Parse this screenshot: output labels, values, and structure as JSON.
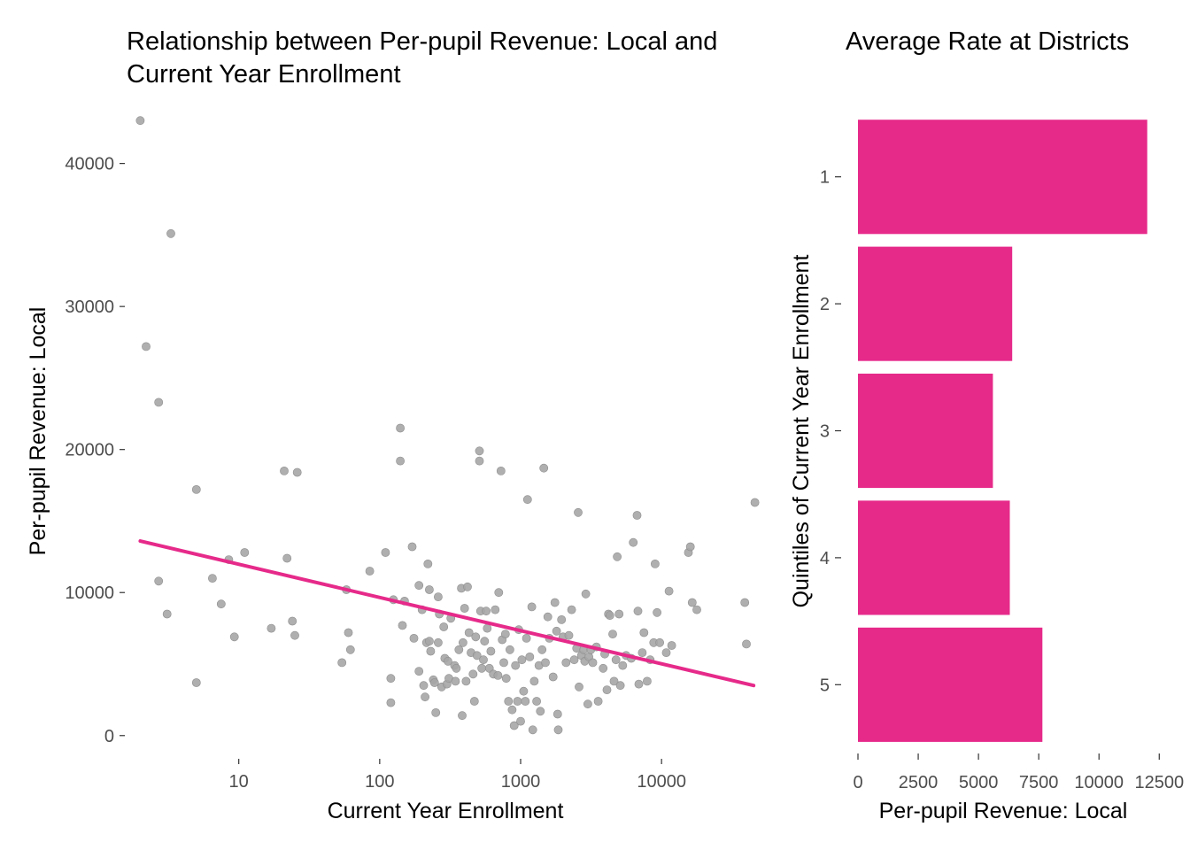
{
  "colors": {
    "accent": "#e62a8a",
    "points": "#a6a6a6",
    "tick_label": "#4d4d4d",
    "background": "#ffffff"
  },
  "chart_data": [
    {
      "type": "scatter",
      "title": "Relationship between Per-pupil Revenue: Local and Current Year Enrollment",
      "title_lines": [
        "Relationship between Per-pupil Revenue: Local and",
        "Current Year Enrollment"
      ],
      "xlabel": "Current Year Enrollment",
      "ylabel": "Per-pupil Revenue: Local",
      "xscale": "log10",
      "xlim": [
        1.6,
        55000
      ],
      "ylim": [
        -1500,
        44000
      ],
      "xticks": [
        10,
        100,
        1000,
        10000
      ],
      "xtick_labels": [
        "10",
        "100",
        "1000",
        "10000"
      ],
      "yticks": [
        0,
        10000,
        20000,
        30000,
        40000
      ],
      "ytick_labels": [
        "0",
        "10000",
        "20000",
        "30000",
        "40000"
      ],
      "grid": false,
      "trend_line": {
        "x": [
          2,
          45000
        ],
        "y": [
          13600,
          3500
        ]
      },
      "points": [
        [
          2,
          43000
        ],
        [
          2.2,
          27200
        ],
        [
          2.7,
          23300
        ],
        [
          2.7,
          10800
        ],
        [
          3.1,
          8500
        ],
        [
          3.3,
          35100
        ],
        [
          5,
          17200
        ],
        [
          5,
          3700
        ],
        [
          6.5,
          11000
        ],
        [
          7.5,
          9200
        ],
        [
          8.5,
          12300
        ],
        [
          9.3,
          6900
        ],
        [
          11,
          12800
        ],
        [
          17,
          7500
        ],
        [
          21,
          18500
        ],
        [
          22,
          12400
        ],
        [
          24,
          8000
        ],
        [
          25,
          7000
        ],
        [
          26,
          18400
        ],
        [
          54,
          5100
        ],
        [
          58,
          10200
        ],
        [
          60,
          7200
        ],
        [
          62,
          6000
        ],
        [
          85,
          11500
        ],
        [
          110,
          12800
        ],
        [
          120,
          4000
        ],
        [
          120,
          2300
        ],
        [
          125,
          9500
        ],
        [
          140,
          21500
        ],
        [
          140,
          19200
        ],
        [
          145,
          7700
        ],
        [
          150,
          9400
        ],
        [
          170,
          13200
        ],
        [
          175,
          6800
        ],
        [
          190,
          10500
        ],
        [
          190,
          4500
        ],
        [
          200,
          8800
        ],
        [
          205,
          3500
        ],
        [
          210,
          2700
        ],
        [
          215,
          6500
        ],
        [
          220,
          12000
        ],
        [
          225,
          10200
        ],
        [
          225,
          6600
        ],
        [
          230,
          5900
        ],
        [
          240,
          3900
        ],
        [
          245,
          3700
        ],
        [
          250,
          1600
        ],
        [
          260,
          6500
        ],
        [
          260,
          9700
        ],
        [
          265,
          8500
        ],
        [
          275,
          3400
        ],
        [
          285,
          7600
        ],
        [
          290,
          5400
        ],
        [
          300,
          3600
        ],
        [
          305,
          5200
        ],
        [
          310,
          4000
        ],
        [
          320,
          8200
        ],
        [
          340,
          4900
        ],
        [
          345,
          3800
        ],
        [
          350,
          4700
        ],
        [
          365,
          6000
        ],
        [
          380,
          10300
        ],
        [
          385,
          1400
        ],
        [
          390,
          6500
        ],
        [
          400,
          8900
        ],
        [
          410,
          3800
        ],
        [
          420,
          10400
        ],
        [
          430,
          7200
        ],
        [
          445,
          5800
        ],
        [
          460,
          4300
        ],
        [
          470,
          2400
        ],
        [
          480,
          6900
        ],
        [
          490,
          5600
        ],
        [
          510,
          19900
        ],
        [
          510,
          19200
        ],
        [
          520,
          8700
        ],
        [
          530,
          4700
        ],
        [
          545,
          5300
        ],
        [
          555,
          6600
        ],
        [
          570,
          8700
        ],
        [
          580,
          7500
        ],
        [
          600,
          4700
        ],
        [
          615,
          5900
        ],
        [
          640,
          4300
        ],
        [
          660,
          8800
        ],
        [
          690,
          4200
        ],
        [
          700,
          10000
        ],
        [
          725,
          18500
        ],
        [
          740,
          6700
        ],
        [
          760,
          5100
        ],
        [
          780,
          7100
        ],
        [
          790,
          4000
        ],
        [
          820,
          2400
        ],
        [
          840,
          6000
        ],
        [
          870,
          1800
        ],
        [
          900,
          700
        ],
        [
          920,
          4900
        ],
        [
          950,
          2400
        ],
        [
          970,
          7400
        ],
        [
          1000,
          1000
        ],
        [
          1020,
          5300
        ],
        [
          1050,
          3100
        ],
        [
          1080,
          2400
        ],
        [
          1100,
          6800
        ],
        [
          1120,
          16500
        ],
        [
          1160,
          5500
        ],
        [
          1200,
          9000
        ],
        [
          1220,
          400
        ],
        [
          1250,
          3800
        ],
        [
          1300,
          2400
        ],
        [
          1350,
          4900
        ],
        [
          1380,
          1700
        ],
        [
          1420,
          6000
        ],
        [
          1460,
          18700
        ],
        [
          1500,
          5100
        ],
        [
          1560,
          8300
        ],
        [
          1600,
          6800
        ],
        [
          1700,
          4100
        ],
        [
          1750,
          9300
        ],
        [
          1800,
          7300
        ],
        [
          1830,
          1500
        ],
        [
          1850,
          400
        ],
        [
          1950,
          8100
        ],
        [
          2000,
          6900
        ],
        [
          2100,
          5100
        ],
        [
          2200,
          7000
        ],
        [
          2300,
          8800
        ],
        [
          2400,
          5300
        ],
        [
          2500,
          6100
        ],
        [
          2560,
          15600
        ],
        [
          2600,
          3400
        ],
        [
          2700,
          5600
        ],
        [
          2800,
          6000
        ],
        [
          2850,
          5200
        ],
        [
          2900,
          9900
        ],
        [
          3000,
          2200
        ],
        [
          3050,
          5500
        ],
        [
          3150,
          6000
        ],
        [
          3250,
          5100
        ],
        [
          3450,
          6200
        ],
        [
          3550,
          2400
        ],
        [
          3850,
          4700
        ],
        [
          3950,
          5700
        ],
        [
          4100,
          3200
        ],
        [
          4200,
          8500
        ],
        [
          4300,
          8400
        ],
        [
          4500,
          7100
        ],
        [
          4600,
          3800
        ],
        [
          4750,
          5300
        ],
        [
          4850,
          12500
        ],
        [
          5000,
          8500
        ],
        [
          5100,
          3500
        ],
        [
          5300,
          4900
        ],
        [
          5600,
          5600
        ],
        [
          6100,
          5400
        ],
        [
          6300,
          13500
        ],
        [
          6700,
          15400
        ],
        [
          6800,
          8700
        ],
        [
          6900,
          3600
        ],
        [
          7300,
          5800
        ],
        [
          7500,
          7200
        ],
        [
          7900,
          3800
        ],
        [
          8300,
          5300
        ],
        [
          8800,
          6500
        ],
        [
          9000,
          12000
        ],
        [
          9300,
          8600
        ],
        [
          9700,
          6500
        ],
        [
          10800,
          5800
        ],
        [
          11300,
          10100
        ],
        [
          11800,
          6300
        ],
        [
          15500,
          12800
        ],
        [
          16000,
          13200
        ],
        [
          16500,
          9300
        ],
        [
          17800,
          8800
        ],
        [
          39000,
          9300
        ],
        [
          40000,
          6400
        ],
        [
          46000,
          16300
        ]
      ]
    },
    {
      "type": "bar",
      "orientation": "horizontal",
      "title": "Average Rate at Districts",
      "xlabel": "Per-pupil Revenue: Local",
      "ylabel": "Quintiles of Current Year Enrollment",
      "categories": [
        "1",
        "2",
        "3",
        "4",
        "5"
      ],
      "values": [
        12000,
        6400,
        5600,
        6300,
        7650
      ],
      "xlim": [
        0,
        12600
      ],
      "xticks": [
        0,
        2500,
        5000,
        7500,
        10000,
        12500
      ],
      "xtick_labels": [
        "0",
        "2500",
        "5000",
        "7500",
        "10000",
        "12500"
      ],
      "grid": false
    }
  ]
}
